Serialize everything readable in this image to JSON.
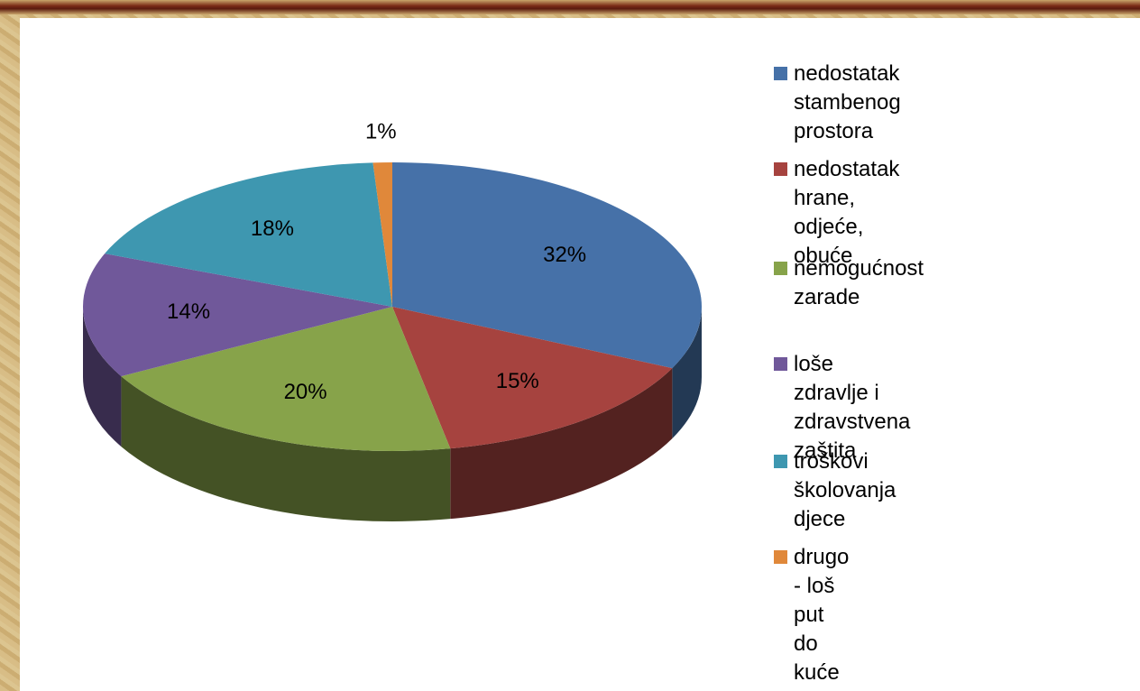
{
  "chart_data": {
    "type": "pie",
    "categories": [
      "nedostatak stambenog\nprostora",
      "nedostatak hrane,\nodjeće, obuće",
      "nemogućnost zarade",
      "loše zdravlje i\nzdravstvena zaštita",
      "troškovi školovanja djece",
      "drugo - loš put do kuće"
    ],
    "values": [
      32,
      15,
      20,
      14,
      18,
      1
    ],
    "value_labels": [
      "32%",
      "15%",
      "20%",
      "14%",
      "18%",
      "1%"
    ],
    "colors": [
      "#4671a8",
      "#a6433f",
      "#87a34a",
      "#70589a",
      "#3e97b0",
      "#e0883a"
    ],
    "legend": "right"
  }
}
